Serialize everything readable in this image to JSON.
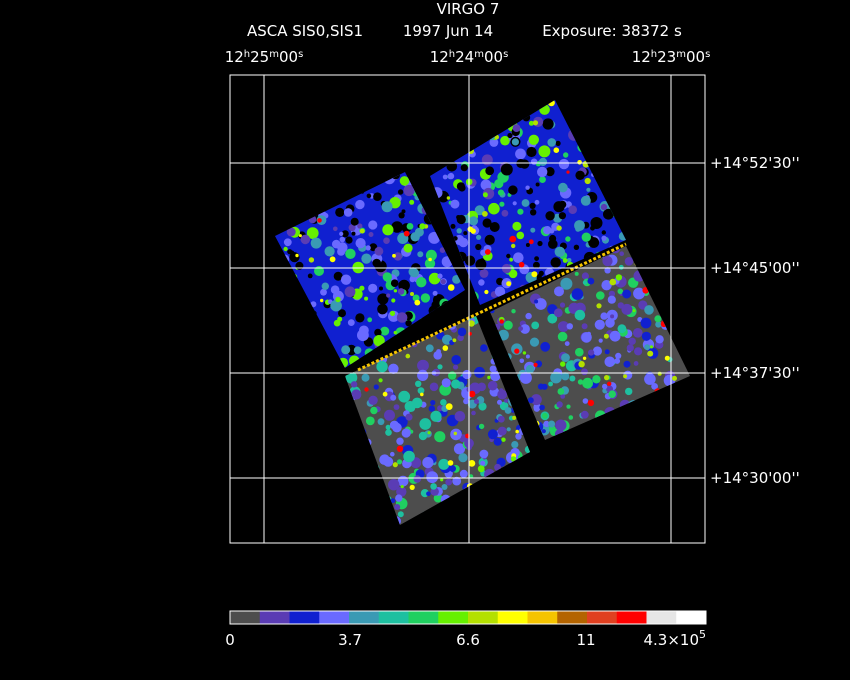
{
  "header": {
    "title": "VIRGO 7",
    "instrument": "ASCA SIS0,SIS1",
    "date": "1997 Jun 14",
    "exposure": "Exposure: 38372 s"
  },
  "ra_labels": [
    {
      "parts": [
        "12",
        "h",
        "25",
        "m",
        "00",
        "s"
      ]
    },
    {
      "parts": [
        "12",
        "h",
        "24",
        "m",
        "00",
        "s"
      ]
    },
    {
      "parts": [
        "12",
        "h",
        "23",
        "m",
        "00",
        "s"
      ]
    }
  ],
  "dec_labels": [
    "+14°52'30''",
    "+14°45'00''",
    "+14°37'30''",
    "+14°30'00''"
  ],
  "colorbar": {
    "colors": [
      "#4d4d4d",
      "#5a3cb4",
      "#1020d0",
      "#6a6aff",
      "#3a9ab4",
      "#1ec0a0",
      "#20d060",
      "#66f000",
      "#b4e000",
      "#ffff00",
      "#f5c400",
      "#b46400",
      "#e04020",
      "#ff0000",
      "#e6e6e6",
      "#ffffff"
    ],
    "labels": [
      "0",
      "3.7",
      "6.6",
      "11"
    ],
    "max_label": {
      "base": "4.3×10",
      "exponent": "5"
    }
  }
}
